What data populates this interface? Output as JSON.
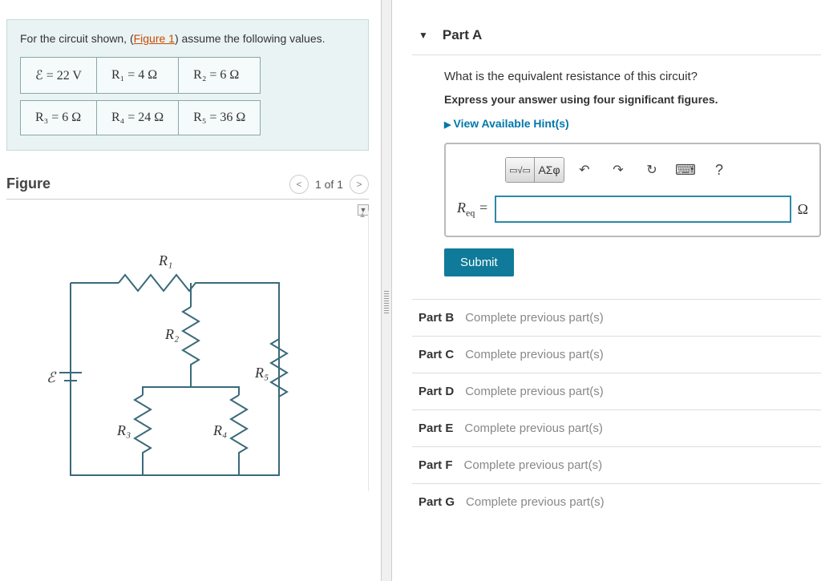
{
  "problem": {
    "intro_prefix": "For the circuit shown, (",
    "figure_link": "Figure 1",
    "intro_suffix": ") assume the following values.",
    "values": [
      [
        "ℰ = 22 V",
        "R₁ = 4 Ω",
        "R₂ = 6 Ω"
      ],
      [
        "R₃ = 6 Ω",
        "R₄ = 24 Ω",
        "R₅ = 36 Ω"
      ]
    ]
  },
  "figure": {
    "title": "Figure",
    "pager": "1 of 1",
    "labels": {
      "E": "ℰ",
      "R1": "R₁",
      "R2": "R₂",
      "R3": "R₃",
      "R4": "R₄",
      "R5": "R₅"
    }
  },
  "partA": {
    "title": "Part A",
    "question": "What is the equivalent resistance of this circuit?",
    "instruction": "Express your answer using four significant figures.",
    "hints": "View Available Hint(s)",
    "answer_label_var": "R",
    "answer_label_sub": "eq",
    "answer_label_eq": " =",
    "answer_unit": "Ω",
    "submit": "Submit",
    "toolbar": {
      "templates": "▭√▭",
      "symbols": "ΑΣφ",
      "undo": "↶",
      "redo": "↷",
      "reset": "↻",
      "keyboard": "⌨",
      "help": "?"
    }
  },
  "locked_parts": [
    {
      "label": "Part B",
      "msg": "Complete previous part(s)"
    },
    {
      "label": "Part C",
      "msg": "Complete previous part(s)"
    },
    {
      "label": "Part D",
      "msg": "Complete previous part(s)"
    },
    {
      "label": "Part E",
      "msg": "Complete previous part(s)"
    },
    {
      "label": "Part F",
      "msg": "Complete previous part(s)"
    },
    {
      "label": "Part G",
      "msg": "Complete previous part(s)"
    }
  ],
  "colors": {
    "accent": "#0f7a99",
    "link": "#c94a00",
    "box_bg": "#eaf3f3"
  }
}
